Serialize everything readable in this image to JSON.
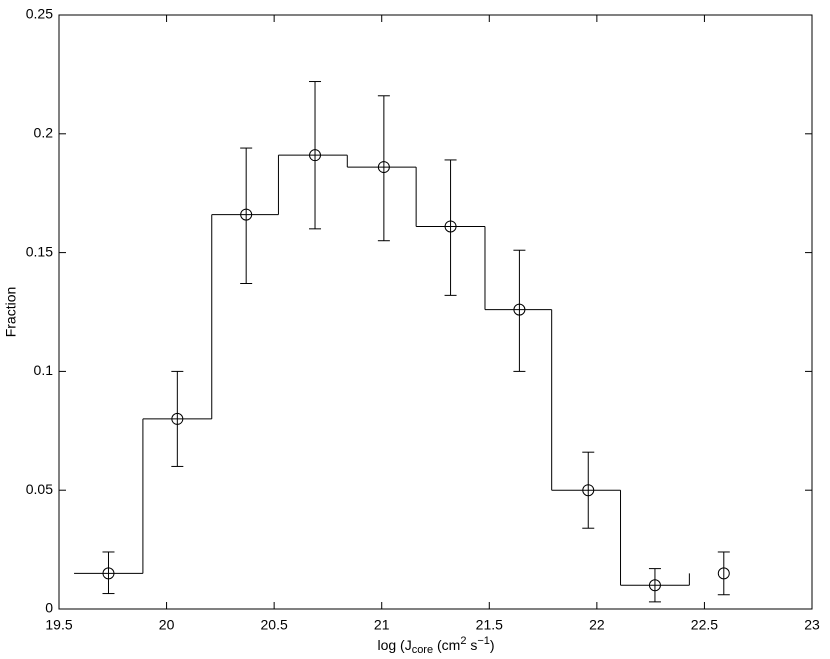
{
  "chart_data": {
    "type": "errorbar-stairs",
    "x": [
      19.73,
      20.05,
      20.37,
      20.69,
      21.01,
      21.32,
      21.64,
      21.96,
      22.27,
      22.59
    ],
    "values": [
      0.015,
      0.08,
      0.166,
      0.191,
      0.186,
      0.161,
      0.126,
      0.05,
      0.01,
      0.015
    ],
    "err_minus": [
      0.0085,
      0.02,
      0.029,
      0.031,
      0.031,
      0.029,
      0.026,
      0.016,
      0.007,
      0.009
    ],
    "err_plus": [
      0.009,
      0.02,
      0.028,
      0.031,
      0.03,
      0.028,
      0.025,
      0.016,
      0.007,
      0.009
    ],
    "edges": [
      19.57,
      19.89,
      20.21,
      20.52,
      20.84,
      21.16,
      21.48,
      21.79,
      22.11,
      22.43
    ],
    "color": "#000000",
    "xlim": [
      19.5,
      23
    ],
    "xticks": [
      19.5,
      20,
      20.5,
      21,
      21.5,
      22,
      22.5,
      23
    ],
    "ylim": [
      0,
      0.25
    ],
    "yticks": [
      0,
      0.05,
      0.1,
      0.15,
      0.2,
      0.25
    ],
    "xlabel": [
      "log (J",
      "core",
      " (cm",
      "2",
      " s",
      "−1",
      ")"
    ],
    "ylabel": "Fraction"
  }
}
